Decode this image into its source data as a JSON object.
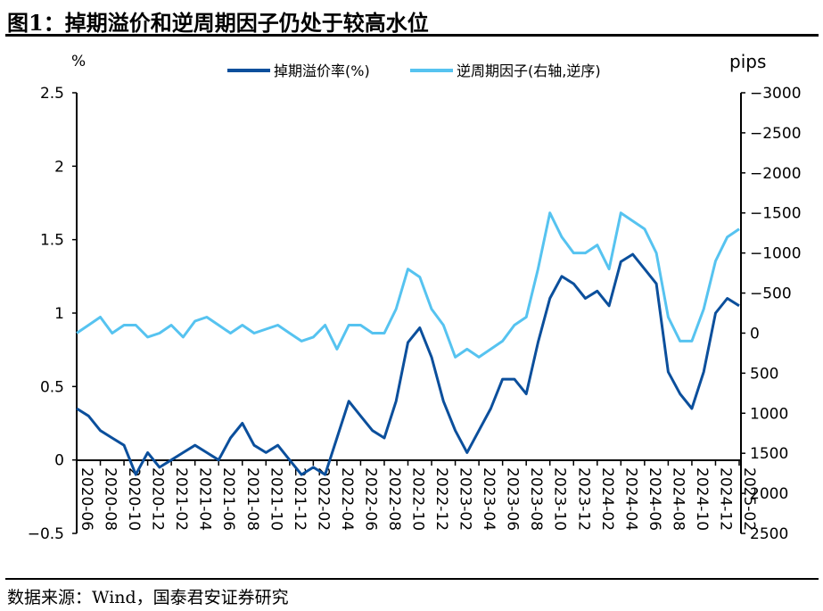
{
  "title": "图1：掉期溢价和逆周期因子仍处于较高水位",
  "source": "数据来源：Wind，国泰君安证券研究",
  "chart_data": {
    "type": "line",
    "left_unit": "%",
    "right_unit": "pips",
    "left_ylim": [
      -0.5,
      2.5
    ],
    "left_ticks": [
      "2.5",
      "2",
      "1.5",
      "1",
      "0.5",
      "0",
      "−0.5"
    ],
    "right_ylim": [
      -3000,
      2500
    ],
    "right_reversed": true,
    "right_ticks": [
      "−3000",
      "−2500",
      "−2000",
      "−1500",
      "−1000",
      "−500",
      "0",
      "500",
      "1000",
      "1500",
      "2000",
      "2500"
    ],
    "x_ticks": [
      "2020-06",
      "2020-08",
      "2020-10",
      "2020-12",
      "2021-02",
      "2021-04",
      "2021-06",
      "2021-08",
      "2021-10",
      "2021-12",
      "2022-02",
      "2022-04",
      "2022-06",
      "2022-08",
      "2022-10",
      "2022-12",
      "2023-02",
      "2023-04",
      "2023-06",
      "2023-08",
      "2023-10",
      "2023-12",
      "2024-02",
      "2024-04",
      "2024-06",
      "2024-08",
      "2024-10",
      "2024-12",
      "2025-02"
    ],
    "legend_position": "top",
    "x": [
      "2020-06",
      "2020-07",
      "2020-08",
      "2020-09",
      "2020-10",
      "2020-11",
      "2020-12",
      "2021-01",
      "2021-02",
      "2021-03",
      "2021-04",
      "2021-05",
      "2021-06",
      "2021-07",
      "2021-08",
      "2021-09",
      "2021-10",
      "2021-11",
      "2021-12",
      "2022-01",
      "2022-02",
      "2022-03",
      "2022-04",
      "2022-05",
      "2022-06",
      "2022-07",
      "2022-08",
      "2022-09",
      "2022-10",
      "2022-11",
      "2022-12",
      "2023-01",
      "2023-02",
      "2023-03",
      "2023-04",
      "2023-05",
      "2023-06",
      "2023-07",
      "2023-08",
      "2023-09",
      "2023-10",
      "2023-11",
      "2023-12",
      "2024-01",
      "2024-02",
      "2024-03",
      "2024-04",
      "2024-05",
      "2024-06",
      "2024-07",
      "2024-08",
      "2024-09",
      "2024-10",
      "2024-11",
      "2024-12",
      "2025-01",
      "2025-02"
    ],
    "series": [
      {
        "name": "掉期溢价率(%)",
        "axis": "left",
        "color": "#0B4F9C",
        "values": [
          0.35,
          0.3,
          0.2,
          0.15,
          0.1,
          -0.1,
          0.05,
          -0.05,
          0.0,
          0.05,
          0.1,
          0.05,
          0.0,
          0.15,
          0.25,
          0.1,
          0.05,
          0.1,
          0.0,
          -0.1,
          -0.05,
          -0.1,
          0.15,
          0.4,
          0.3,
          0.2,
          0.15,
          0.4,
          0.8,
          0.9,
          0.7,
          0.4,
          0.2,
          0.05,
          0.2,
          0.35,
          0.55,
          0.55,
          0.45,
          0.8,
          1.1,
          1.25,
          1.2,
          1.1,
          1.15,
          1.05,
          1.35,
          1.4,
          1.3,
          1.2,
          0.6,
          0.45,
          0.35,
          0.6,
          1.0,
          1.1,
          1.05
        ]
      },
      {
        "name": "逆周期因子(右轴,逆序)",
        "axis": "right",
        "color": "#56C3F0",
        "values": [
          0,
          -100,
          -200,
          0,
          -100,
          -100,
          50,
          0,
          -100,
          50,
          -150,
          -200,
          -100,
          0,
          -100,
          0,
          -50,
          -100,
          0,
          100,
          50,
          -100,
          200,
          -100,
          -100,
          0,
          0,
          -300,
          -800,
          -700,
          -300,
          -100,
          300,
          200,
          300,
          200,
          100,
          -100,
          -200,
          -800,
          -1500,
          -1200,
          -1000,
          -1000,
          -1100,
          -800,
          -1500,
          -1400,
          -1300,
          -1000,
          -200,
          100,
          100,
          -300,
          -900,
          -1200,
          -1300
        ]
      }
    ]
  }
}
